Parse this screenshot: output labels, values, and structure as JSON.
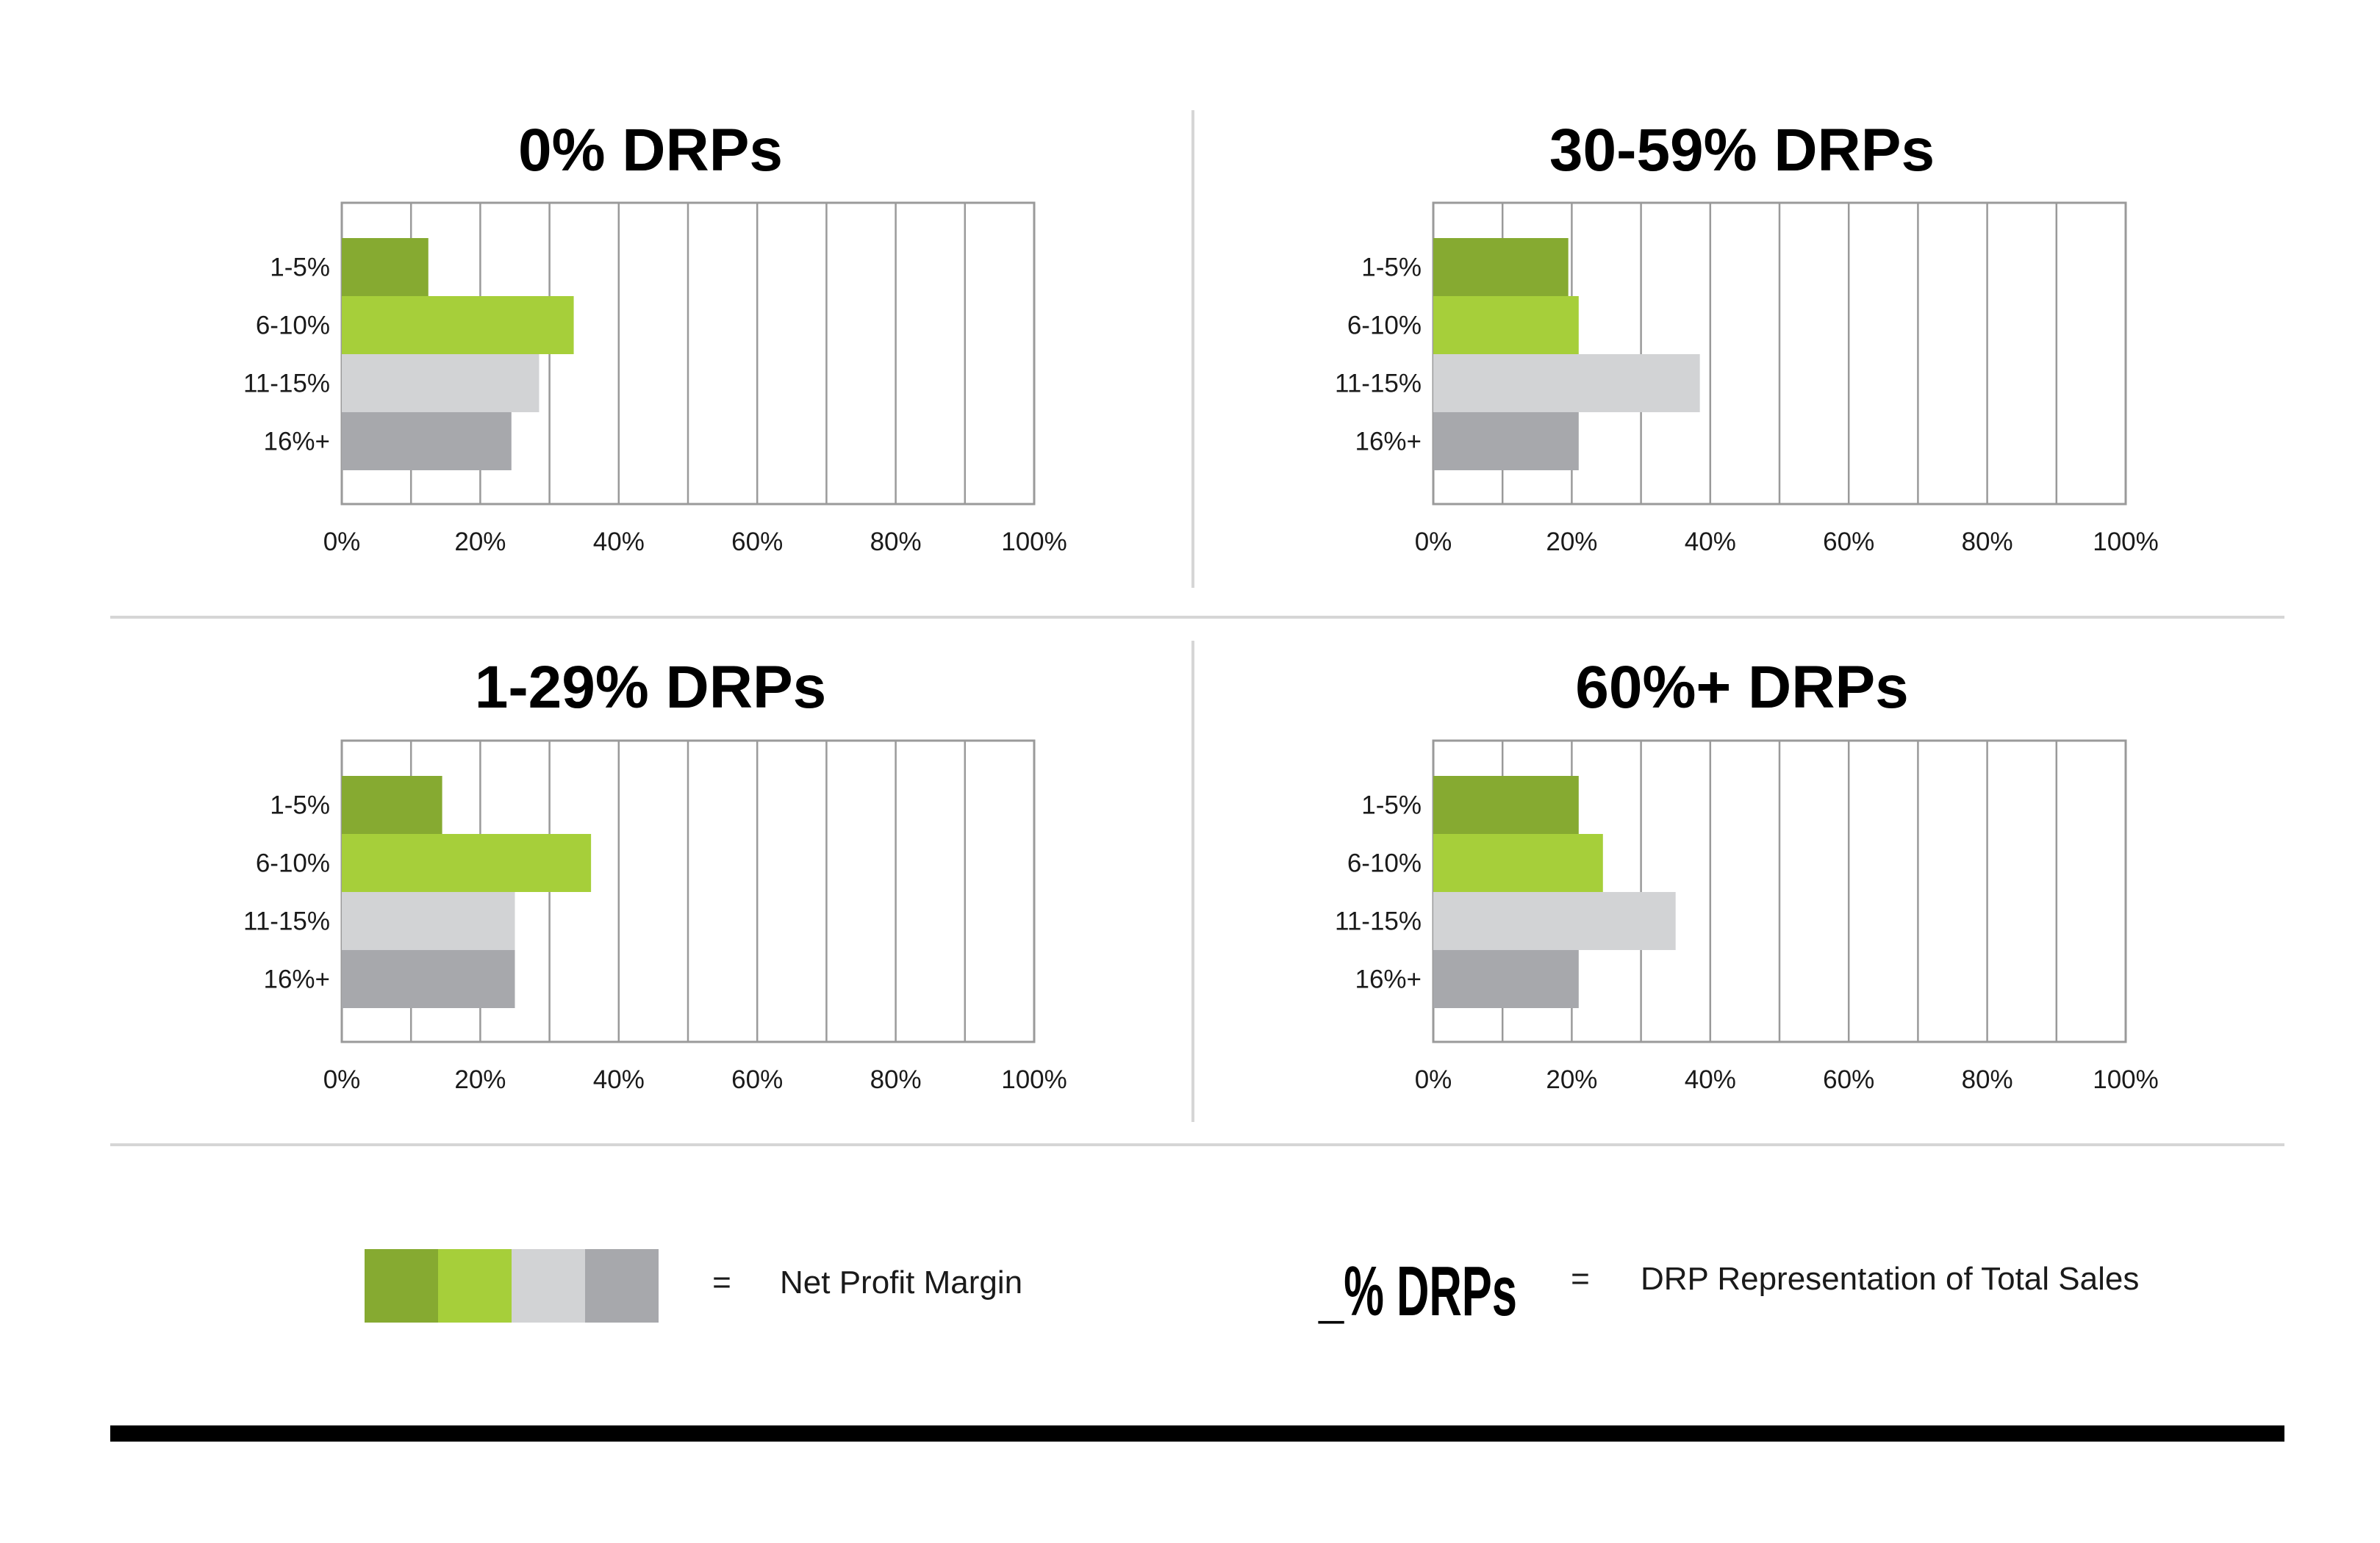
{
  "colors": {
    "series": [
      "#86aa31",
      "#a6cf3a",
      "#d2d3d5",
      "#a7a8ac"
    ],
    "grid": "#9a9a9a",
    "divider": "#d6d6d6",
    "footer_bar": "#000000"
  },
  "chart_data": [
    {
      "type": "bar",
      "orientation": "horizontal",
      "title": "0% DRPs",
      "categories": [
        "1-5%",
        "6-10%",
        "11-15%",
        "16%+"
      ],
      "values": [
        12.5,
        33.5,
        28.5,
        24.5
      ],
      "xlim": [
        0,
        100
      ],
      "x_ticks": [
        "0%",
        "20%",
        "40%",
        "60%",
        "80%",
        "100%"
      ],
      "grid": true
    },
    {
      "type": "bar",
      "orientation": "horizontal",
      "title": "30-59% DRPs",
      "categories": [
        "1-5%",
        "6-10%",
        "11-15%",
        "16%+"
      ],
      "values": [
        19.5,
        21,
        38.5,
        21
      ],
      "xlim": [
        0,
        100
      ],
      "x_ticks": [
        "0%",
        "20%",
        "40%",
        "60%",
        "80%",
        "100%"
      ],
      "grid": true
    },
    {
      "type": "bar",
      "orientation": "horizontal",
      "title": "1-29% DRPs",
      "categories": [
        "1-5%",
        "6-10%",
        "11-15%",
        "16%+"
      ],
      "values": [
        14.5,
        36,
        25,
        25
      ],
      "xlim": [
        0,
        100
      ],
      "x_ticks": [
        "0%",
        "20%",
        "40%",
        "60%",
        "80%",
        "100%"
      ],
      "grid": true
    },
    {
      "type": "bar",
      "orientation": "horizontal",
      "title": "60%+ DRPs",
      "categories": [
        "1-5%",
        "6-10%",
        "11-15%",
        "16%+"
      ],
      "values": [
        21,
        24.5,
        35,
        21
      ],
      "xlim": [
        0,
        100
      ],
      "x_ticks": [
        "0%",
        "20%",
        "40%",
        "60%",
        "80%",
        "100%"
      ],
      "grid": true
    }
  ],
  "legend": {
    "equals": "=",
    "swatch_meaning": "Net Profit Margin",
    "drp_symbol": "_% DRPs",
    "drp_meaning": "DRP Representation of Total Sales"
  }
}
